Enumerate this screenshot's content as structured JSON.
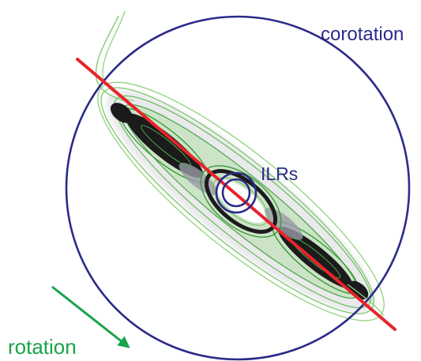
{
  "labels": {
    "corotation": "corotation",
    "ilrs": "ILRs",
    "rotation": "rotation"
  },
  "colors": {
    "circle": "#2b2b8a",
    "bar_axis": "#e8242a",
    "rotation_arrow": "#1aa34a",
    "contour_outer": "#7cc96a",
    "contour_inner": "#2f8f2f",
    "core": "#141414",
    "haze": "#b8b8c4"
  }
}
